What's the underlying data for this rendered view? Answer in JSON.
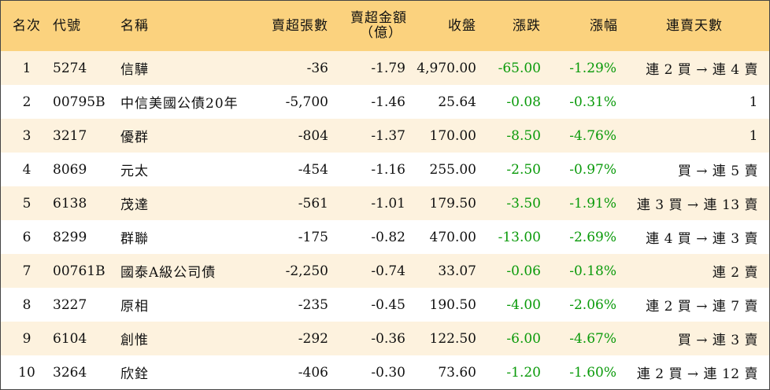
{
  "headers": {
    "rank": "名次",
    "code": "代號",
    "name": "名稱",
    "net_sell_volume": "賣超張數",
    "net_sell_amount_line1": "賣超金額",
    "net_sell_amount_line2": "（億）",
    "close": "收盤",
    "change": "漲跌",
    "change_pct": "漲幅",
    "streak": "連賣天數"
  },
  "colors": {
    "header_bg": "#fbd27e",
    "odd_row_bg": "#fdf2de",
    "change_text": "#0a9a0a"
  },
  "rows": [
    {
      "rank": "1",
      "code": "5274",
      "name": "信驊",
      "volume": "-36",
      "amount": "-1.79",
      "close": "4,970.00",
      "change": "-65.00",
      "pct": "-1.29%",
      "streak": "連 2 買 → 連 4 賣"
    },
    {
      "rank": "2",
      "code": "00795B",
      "name": "中信美國公債20年",
      "volume": "-5,700",
      "amount": "-1.46",
      "close": "25.64",
      "change": "-0.08",
      "pct": "-0.31%",
      "streak": "1"
    },
    {
      "rank": "3",
      "code": "3217",
      "name": "優群",
      "volume": "-804",
      "amount": "-1.37",
      "close": "170.00",
      "change": "-8.50",
      "pct": "-4.76%",
      "streak": "1"
    },
    {
      "rank": "4",
      "code": "8069",
      "name": "元太",
      "volume": "-454",
      "amount": "-1.16",
      "close": "255.00",
      "change": "-2.50",
      "pct": "-0.97%",
      "streak": "買 → 連 5 賣"
    },
    {
      "rank": "5",
      "code": "6138",
      "name": "茂達",
      "volume": "-561",
      "amount": "-1.01",
      "close": "179.50",
      "change": "-3.50",
      "pct": "-1.91%",
      "streak": "連 3 買 → 連 13 賣"
    },
    {
      "rank": "6",
      "code": "8299",
      "name": "群聯",
      "volume": "-175",
      "amount": "-0.82",
      "close": "470.00",
      "change": "-13.00",
      "pct": "-2.69%",
      "streak": "連 4 買 → 連 3 賣"
    },
    {
      "rank": "7",
      "code": "00761B",
      "name": "國泰A級公司債",
      "volume": "-2,250",
      "amount": "-0.74",
      "close": "33.07",
      "change": "-0.06",
      "pct": "-0.18%",
      "streak": "連 2 賣"
    },
    {
      "rank": "8",
      "code": "3227",
      "name": "原相",
      "volume": "-235",
      "amount": "-0.45",
      "close": "190.50",
      "change": "-4.00",
      "pct": "-2.06%",
      "streak": "連 2 買 → 連 7 賣"
    },
    {
      "rank": "9",
      "code": "6104",
      "name": "創惟",
      "volume": "-292",
      "amount": "-0.36",
      "close": "122.50",
      "change": "-6.00",
      "pct": "-4.67%",
      "streak": "買 → 連 3 賣"
    },
    {
      "rank": "10",
      "code": "3264",
      "name": "欣銓",
      "volume": "-406",
      "amount": "-0.30",
      "close": "73.60",
      "change": "-1.20",
      "pct": "-1.60%",
      "streak": "連 2 買 → 連 12 賣"
    }
  ]
}
